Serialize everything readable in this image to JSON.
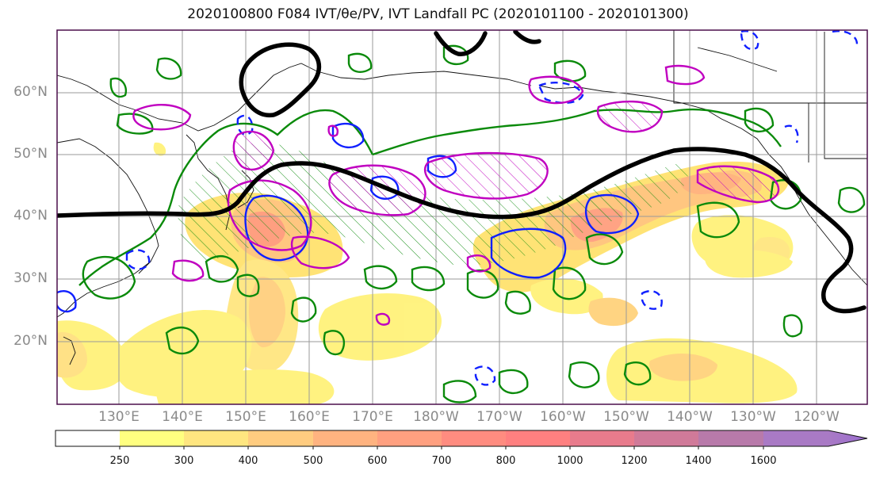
{
  "title": "2020100800 F084 IVT/θe/PV, IVT Landfall PC (2020101100 - 2020101300)",
  "map": {
    "lat_labels": [
      "60°N",
      "50°N",
      "40°N",
      "30°N",
      "20°N"
    ],
    "lon_labels": [
      "130°E",
      "140°E",
      "150°E",
      "160°E",
      "170°E",
      "180°W",
      "170°W",
      "160°W",
      "150°W",
      "140°W",
      "130°W",
      "120°W"
    ]
  },
  "colorbar": {
    "ticks": [
      "250",
      "300",
      "400",
      "500",
      "600",
      "700",
      "800",
      "1000",
      "1200",
      "1400",
      "1600"
    ],
    "colors": [
      "#ffffff",
      "#ffff80",
      "#ffe680",
      "#ffcc80",
      "#ffb380",
      "#ffa080",
      "#ff8c80",
      "#ff8080",
      "#e87b8c",
      "#d07a99",
      "#b87aaa",
      "#a97ac5"
    ]
  },
  "colors": {
    "thick_contour": "#000000",
    "theta_e_contour": "#008000",
    "pv_contour": "#c000c0",
    "dashed_contour": "#0000ff",
    "frame": "#4b0f4b"
  }
}
